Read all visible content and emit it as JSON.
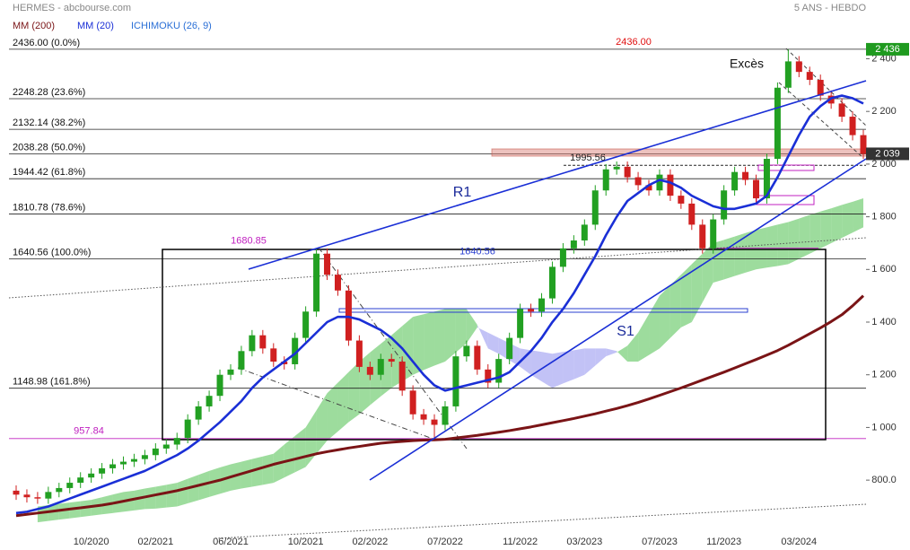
{
  "chart_data": {
    "type": "candlestick",
    "title": "HERMES - abcbourse.com",
    "subtitle": "5 ANS - HEBDO",
    "categories": [
      null,
      null,
      null,
      null,
      null,
      null,
      null,
      "10/2020",
      null,
      null,
      null,
      null,
      null,
      "02/2021",
      null,
      null,
      null,
      null,
      null,
      null,
      "06/2021",
      null,
      null,
      null,
      null,
      null,
      null,
      "10/2021",
      null,
      null,
      null,
      null,
      null,
      "02/2022",
      null,
      null,
      null,
      null,
      null,
      null,
      "07/2022",
      null,
      null,
      null,
      null,
      null,
      null,
      "11/2022",
      null,
      null,
      null,
      null,
      null,
      "03/2023",
      null,
      null,
      null,
      null,
      null,
      null,
      "07/2023",
      null,
      null,
      null,
      null,
      null,
      "11/2023",
      null,
      null,
      null,
      null,
      null,
      null,
      "03/2024",
      null,
      null,
      null,
      null,
      null,
      null
    ],
    "open": [
      760,
      745,
      735,
      730,
      755,
      770,
      790,
      810,
      825,
      845,
      860,
      870,
      880,
      895,
      920,
      935,
      960,
      1030,
      1080,
      1120,
      1200,
      1220,
      1290,
      1350,
      1300,
      1250,
      1240,
      1340,
      1440,
      1660,
      1580,
      1520,
      1330,
      1230,
      1200,
      1260,
      1250,
      1140,
      1050,
      1030,
      1010,
      1080,
      1270,
      1310,
      1220,
      1170,
      1260,
      1340,
      1450,
      1440,
      1490,
      1610,
      1680,
      1710,
      1770,
      1900,
      1980,
      1990,
      1950,
      1920,
      1900,
      1960,
      1880,
      1850,
      1770,
      1680,
      1790,
      1900,
      1970,
      1940,
      1870,
      2020,
      2290,
      2390,
      2350,
      2320,
      2260,
      2230,
      2180,
      2110
    ],
    "high": [
      780,
      765,
      755,
      775,
      790,
      810,
      830,
      845,
      865,
      880,
      890,
      900,
      915,
      940,
      955,
      980,
      1050,
      1100,
      1140,
      1220,
      1240,
      1310,
      1370,
      1370,
      1320,
      1270,
      1360,
      1460,
      1680,
      1680,
      1600,
      1540,
      1350,
      1250,
      1280,
      1280,
      1270,
      1160,
      1070,
      1050,
      1100,
      1290,
      1330,
      1330,
      1240,
      1280,
      1360,
      1470,
      1470,
      1510,
      1630,
      1700,
      1730,
      1790,
      1920,
      2000,
      2010,
      2010,
      1970,
      1940,
      1980,
      1980,
      1900,
      1870,
      1790,
      1810,
      1920,
      1990,
      1990,
      1960,
      2040,
      2310,
      2436,
      2410,
      2370,
      2340,
      2280,
      2250,
      2200,
      2130
    ],
    "low": [
      725,
      715,
      710,
      710,
      735,
      750,
      770,
      790,
      805,
      825,
      840,
      850,
      860,
      875,
      900,
      915,
      940,
      1010,
      1060,
      1100,
      1180,
      1200,
      1270,
      1280,
      1230,
      1220,
      1220,
      1320,
      1420,
      1560,
      1500,
      1310,
      1210,
      1180,
      1180,
      1230,
      1120,
      1030,
      1010,
      958,
      990,
      1060,
      1250,
      1200,
      1150,
      1150,
      1240,
      1320,
      1420,
      1420,
      1470,
      1590,
      1660,
      1690,
      1750,
      1880,
      1960,
      1930,
      1900,
      1880,
      1880,
      1860,
      1830,
      1750,
      1660,
      1660,
      1770,
      1880,
      1920,
      1850,
      1850,
      2000,
      2270,
      2330,
      2300,
      2240,
      2210,
      2160,
      2090,
      2020
    ],
    "close": [
      745,
      735,
      730,
      755,
      770,
      790,
      810,
      825,
      845,
      860,
      870,
      880,
      895,
      920,
      935,
      960,
      1030,
      1080,
      1120,
      1200,
      1220,
      1290,
      1350,
      1300,
      1250,
      1240,
      1340,
      1440,
      1660,
      1580,
      1520,
      1330,
      1230,
      1200,
      1260,
      1250,
      1140,
      1050,
      1030,
      1010,
      1080,
      1270,
      1310,
      1220,
      1170,
      1260,
      1340,
      1450,
      1440,
      1490,
      1610,
      1680,
      1710,
      1770,
      1900,
      1980,
      1990,
      1950,
      1920,
      1900,
      1960,
      1880,
      1850,
      1770,
      1680,
      1790,
      1900,
      1970,
      1940,
      1870,
      2020,
      2290,
      2390,
      2350,
      2320,
      2260,
      2230,
      2180,
      2110,
      2039
    ],
    "up_color": "#22a022",
    "down_color": "#d02020",
    "series": [
      {
        "name": "MM (200)",
        "color": "#7a1416",
        "values": [
          665,
          670,
          675,
          680,
          685,
          690,
          695,
          700,
          705,
          712,
          720,
          728,
          736,
          744,
          752,
          760,
          770,
          780,
          790,
          800,
          812,
          824,
          836,
          848,
          860,
          870,
          880,
          890,
          900,
          908,
          915,
          922,
          928,
          934,
          940,
          944,
          947,
          950,
          952,
          953,
          955,
          960,
          965,
          970,
          976,
          982,
          988,
          995,
          1002,
          1010,
          1018,
          1026,
          1034,
          1043,
          1052,
          1062,
          1072,
          1083,
          1095,
          1108,
          1122,
          1136,
          1150,
          1165,
          1180,
          1195,
          1210,
          1226,
          1242,
          1258,
          1275,
          1292,
          1312,
          1334,
          1356,
          1378,
          1402,
          1428,
          1462,
          1500
        ]
      },
      {
        "name": "MM (20)",
        "color": "#1a2fd6",
        "values": [
          675,
          680,
          690,
          700,
          715,
          730,
          745,
          760,
          775,
          790,
          805,
          820,
          835,
          855,
          875,
          895,
          920,
          950,
          985,
          1020,
          1060,
          1100,
          1150,
          1190,
          1220,
          1250,
          1280,
          1320,
          1360,
          1400,
          1420,
          1420,
          1410,
          1390,
          1370,
          1340,
          1300,
          1250,
          1200,
          1160,
          1140,
          1150,
          1160,
          1170,
          1180,
          1190,
          1210,
          1250,
          1290,
          1340,
          1400,
          1450,
          1510,
          1580,
          1650,
          1730,
          1800,
          1860,
          1890,
          1920,
          1940,
          1930,
          1910,
          1880,
          1860,
          1840,
          1830,
          1830,
          1840,
          1850,
          1880,
          1950,
          2030,
          2110,
          2180,
          2220,
          2250,
          2260,
          2250,
          2230
        ]
      }
    ],
    "ichimoku": {
      "name": "ICHIMOKU (26, 9)",
      "color": "#2a6fd6",
      "bull_color": "#5cc45c",
      "bear_color": "#9a9af0",
      "span_a": [
        null,
        null,
        700,
        705,
        710,
        715,
        720,
        725,
        735,
        745,
        755,
        760,
        768,
        775,
        782,
        790,
        805,
        820,
        835,
        848,
        860,
        870,
        880,
        890,
        900,
        935,
        968,
        1000,
        1065,
        1130,
        1170,
        1210,
        1250,
        1285,
        1318,
        1350,
        1385,
        1420,
        1430,
        1440,
        1450,
        1450,
        1450,
        1390,
        1300,
        1280,
        1255,
        1230,
        1200,
        1175,
        1150,
        1167,
        1183,
        1200,
        1235,
        1270,
        1285,
        1310,
        1360,
        1430,
        1500,
        1540,
        1580,
        1620,
        1660,
        1700,
        1712,
        1725,
        1738,
        1750,
        1760,
        1770,
        1780,
        1793,
        1807,
        1820,
        1832,
        1845,
        1857,
        1870
      ],
      "span_b": [
        null,
        null,
        640,
        645,
        650,
        655,
        660,
        665,
        670,
        675,
        680,
        685,
        690,
        692,
        696,
        700,
        712,
        724,
        736,
        748,
        760,
        768,
        775,
        782,
        790,
        810,
        830,
        850,
        900,
        950,
        985,
        1020,
        1050,
        1085,
        1118,
        1150,
        1175,
        1200,
        1218,
        1235,
        1250,
        1285,
        1320,
        1380,
        1360,
        1340,
        1320,
        1300,
        1293,
        1287,
        1280,
        1287,
        1293,
        1300,
        1300,
        1300,
        1290,
        1250,
        1250,
        1275,
        1300,
        1340,
        1380,
        1400,
        1475,
        1550,
        1562,
        1575,
        1588,
        1600,
        1607,
        1613,
        1620,
        1640,
        1660,
        1680,
        1700,
        1720,
        1740,
        1760
      ]
    },
    "ylim": [
      579,
      2589
    ],
    "yticks": [
      {
        "value": 800,
        "label": "800.0"
      },
      {
        "value": 1000,
        "label": "1 000"
      },
      {
        "value": 1200,
        "label": "1 200"
      },
      {
        "value": 1400,
        "label": "1 400"
      },
      {
        "value": 1600,
        "label": "1 600"
      },
      {
        "value": 1800,
        "label": "1 800"
      },
      {
        "value": 2000,
        "label": "2 000"
      },
      {
        "value": 2200,
        "label": "2 200"
      },
      {
        "value": 2400,
        "label": "2 400"
      }
    ],
    "fib_levels": [
      {
        "value": 2436,
        "label": "2436.00  (0.0%)"
      },
      {
        "value": 2248.28,
        "label": "2248.28  (23.6%)"
      },
      {
        "value": 2132.14,
        "label": "2132.14  (38.2%)"
      },
      {
        "value": 2038.28,
        "label": "2038.28  (50.0%)"
      },
      {
        "value": 1944.42,
        "label": "1944.42  (61.8%)"
      },
      {
        "value": 1810.78,
        "label": "1810.78  (78.6%)"
      },
      {
        "value": 1640.56,
        "label": "1640.56  (100.0%)"
      },
      {
        "value": 1148.98,
        "label": "1148.98  (161.8%)"
      }
    ],
    "price_labels": [
      {
        "value": 2436,
        "label": "2436.00",
        "color": "#e01010"
      },
      {
        "value": 1680.85,
        "label": "1680.85",
        "color": "#c020c0"
      },
      {
        "value": 1640.56,
        "label": "1640.56",
        "color": "#2a3fd0"
      },
      {
        "value": 1995.56,
        "label": "1995.56",
        "color": "#222222"
      },
      {
        "value": 957.84,
        "label": "957.84",
        "color": "#c020c0"
      }
    ],
    "last_price_boxes": [
      {
        "value": 2436,
        "label": "2 436",
        "color": "#1f9a1f"
      },
      {
        "value": 2039,
        "label": "2 039",
        "color": "#333333"
      }
    ],
    "annotations": [
      "Excès",
      "R1",
      "S1"
    ]
  }
}
